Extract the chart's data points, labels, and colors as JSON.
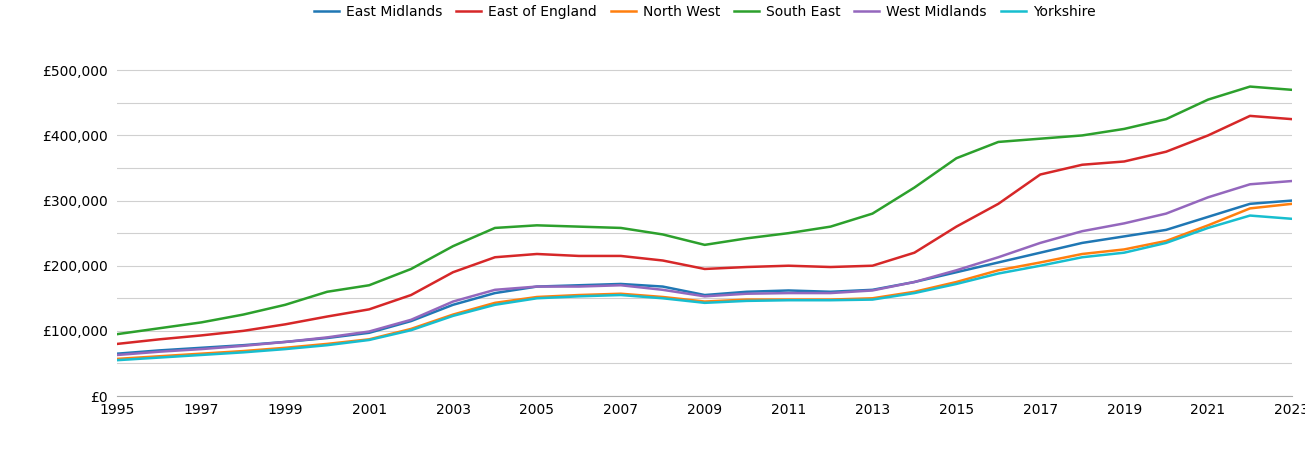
{
  "title": "",
  "regions": [
    "East Midlands",
    "East of England",
    "North West",
    "South East",
    "West Midlands",
    "Yorkshire"
  ],
  "colors": [
    "#1f77b4",
    "#d62728",
    "#ff7f0e",
    "#2ca02c",
    "#9467bd",
    "#17becf"
  ],
  "years": [
    1995,
    1996,
    1997,
    1998,
    1999,
    2000,
    2001,
    2002,
    2003,
    2004,
    2005,
    2006,
    2007,
    2008,
    2009,
    2010,
    2011,
    2012,
    2013,
    2014,
    2015,
    2016,
    2017,
    2018,
    2019,
    2020,
    2021,
    2022,
    2023
  ],
  "data": {
    "East Midlands": [
      65000,
      70000,
      74000,
      78000,
      83000,
      89000,
      97000,
      115000,
      140000,
      158000,
      168000,
      170000,
      172000,
      168000,
      155000,
      160000,
      162000,
      160000,
      163000,
      175000,
      190000,
      205000,
      220000,
      235000,
      245000,
      255000,
      275000,
      295000,
      300000
    ],
    "East of England": [
      80000,
      87000,
      93000,
      100000,
      110000,
      122000,
      133000,
      155000,
      190000,
      213000,
      218000,
      215000,
      215000,
      208000,
      195000,
      198000,
      200000,
      198000,
      200000,
      220000,
      260000,
      295000,
      340000,
      355000,
      360000,
      375000,
      400000,
      430000,
      425000
    ],
    "North West": [
      57000,
      61000,
      65000,
      69000,
      74000,
      80000,
      87000,
      103000,
      125000,
      143000,
      152000,
      155000,
      157000,
      152000,
      145000,
      148000,
      148000,
      148000,
      150000,
      160000,
      175000,
      193000,
      205000,
      218000,
      225000,
      238000,
      262000,
      288000,
      295000
    ],
    "South East": [
      95000,
      104000,
      113000,
      125000,
      140000,
      160000,
      170000,
      195000,
      230000,
      258000,
      262000,
      260000,
      258000,
      248000,
      232000,
      242000,
      250000,
      260000,
      280000,
      320000,
      365000,
      390000,
      395000,
      400000,
      410000,
      425000,
      455000,
      475000,
      470000
    ],
    "West Midlands": [
      63000,
      68000,
      72000,
      77000,
      83000,
      90000,
      99000,
      117000,
      145000,
      163000,
      168000,
      168000,
      170000,
      163000,
      153000,
      157000,
      158000,
      158000,
      162000,
      175000,
      193000,
      213000,
      235000,
      253000,
      265000,
      280000,
      305000,
      325000,
      330000
    ],
    "Yorkshire": [
      55000,
      59000,
      63000,
      67000,
      72000,
      78000,
      86000,
      101000,
      123000,
      140000,
      150000,
      153000,
      155000,
      150000,
      143000,
      146000,
      147000,
      147000,
      148000,
      158000,
      172000,
      188000,
      200000,
      213000,
      220000,
      235000,
      258000,
      277000,
      272000
    ]
  },
  "ylim": [
    0,
    525000
  ],
  "yticks": [
    0,
    100000,
    200000,
    300000,
    400000,
    500000
  ],
  "minor_yticks": [
    50000,
    150000,
    250000,
    350000,
    450000
  ],
  "xlim": [
    1995,
    2023
  ],
  "xticks": [
    1995,
    1997,
    1999,
    2001,
    2003,
    2005,
    2007,
    2009,
    2011,
    2013,
    2015,
    2017,
    2019,
    2021,
    2023
  ],
  "background_color": "#ffffff",
  "grid_color": "#d0d0d0",
  "legend_fontsize": 10,
  "tick_fontsize": 10,
  "line_width": 1.8
}
